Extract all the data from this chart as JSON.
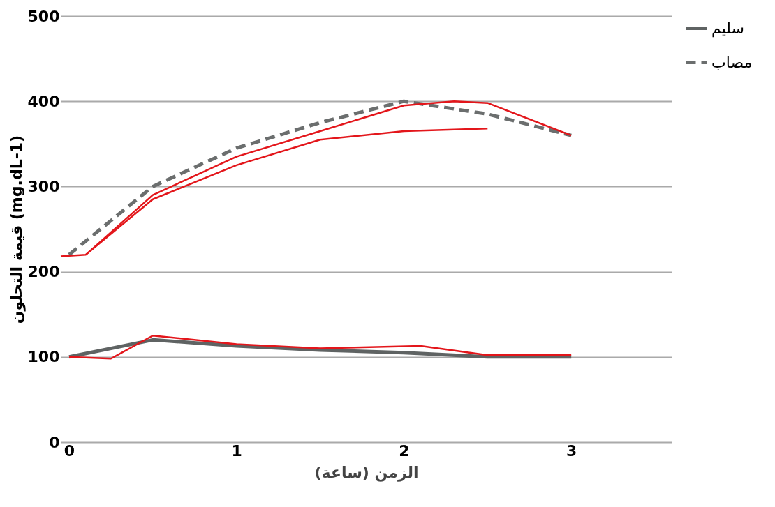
{
  "chart_data": {
    "type": "line",
    "xlabel": "الزمن (ساعة)",
    "ylabel": "قيمة التحلون (mg.dL-1)",
    "xlim": [
      -0.05,
      3.6
    ],
    "xticks": [
      0,
      1,
      2,
      3
    ],
    "ylim": [
      0,
      500
    ],
    "yticks": [
      0,
      100,
      200,
      300,
      400,
      500
    ],
    "grid": "y",
    "legend": "right",
    "series": [
      {
        "name": "سليم",
        "color": "#5f6363",
        "line_style": "solid",
        "x": [
          0,
          0.5,
          1,
          1.5,
          2,
          2.5,
          3
        ],
        "values": [
          100,
          120,
          113,
          108,
          105,
          100,
          100
        ]
      },
      {
        "name": "مصاب",
        "color": "#6b6e6e",
        "line_style": "dashed",
        "x": [
          0,
          0.5,
          1,
          1.5,
          2,
          2.5,
          3
        ],
        "values": [
          220,
          300,
          345,
          375,
          400,
          385,
          360
        ]
      },
      {
        "color": "#e3161b",
        "line_style": "solid",
        "x": [
          -0.05,
          0.1,
          0.5,
          1,
          1.5,
          2,
          2.3,
          2.5,
          3
        ],
        "values": [
          218,
          220,
          290,
          335,
          365,
          395,
          400,
          398,
          360
        ]
      },
      {
        "color": "#e3161b",
        "line_style": "solid",
        "x": [
          0.1,
          0.5,
          1,
          1.5,
          2,
          2.5
        ],
        "values": [
          220,
          285,
          325,
          355,
          365,
          368
        ]
      },
      {
        "color": "#e3161b",
        "line_style": "solid",
        "x": [
          0,
          0.25,
          0.5,
          1,
          1.5,
          2.1,
          2.5,
          3
        ],
        "values": [
          100,
          98,
          125,
          115,
          110,
          113,
          102,
          102
        ]
      }
    ]
  }
}
